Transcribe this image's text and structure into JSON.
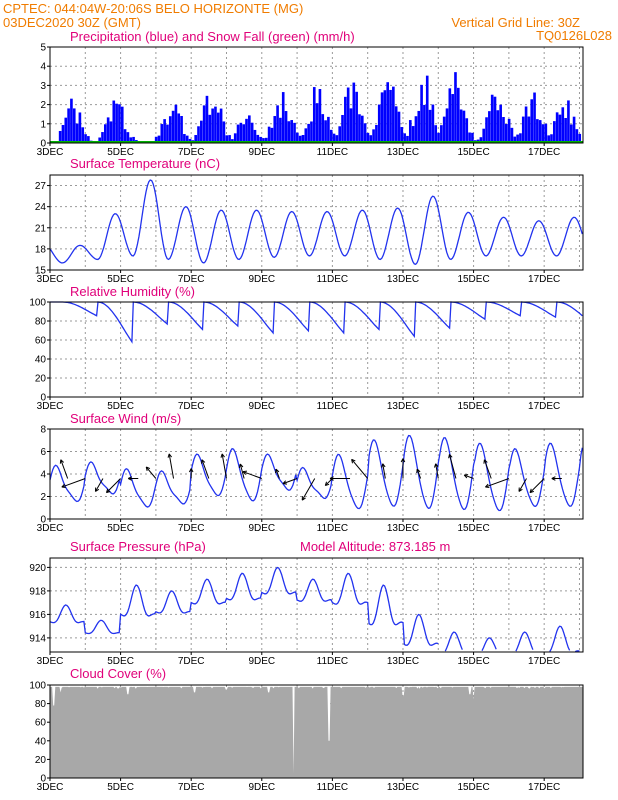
{
  "header": {
    "line1": "CPTEC:  044:04W-20:06S  BELO HORIZONTE (MG)",
    "line2": "03DEC2020 30Z (GMT)",
    "grid_note": "Vertical Grid Line: 30Z",
    "model_id": "TQ0126L028"
  },
  "colors": {
    "header": "#f07c00",
    "title": "#e0007a",
    "precip": "#0000ff",
    "snow": "#00b000",
    "line": "#2233ee",
    "cloud": "#a8a8a8"
  },
  "chart_data": [
    {
      "type": "bar",
      "title": "Precipitation (blue) and Snow Fall (green) (mm/h)",
      "x_tick_labels": [
        "3DEC",
        "5DEC",
        "7DEC",
        "9DEC",
        "11DEC",
        "13DEC",
        "15DEC",
        "17DEC"
      ],
      "ylim": [
        0,
        5
      ],
      "yticks": [
        0,
        1,
        2,
        3,
        4,
        5
      ],
      "grid": true,
      "series": [
        {
          "name": "Precipitation",
          "color": "blue",
          "peaks": [
            [
              0.8,
              2.9
            ],
            [
              2.1,
              2.4
            ],
            [
              3.7,
              2.3
            ],
            [
              4.8,
              3.2
            ],
            [
              5.8,
              1.8
            ],
            [
              6.8,
              3.0
            ],
            [
              7.8,
              3.2
            ],
            [
              8.8,
              3.6
            ],
            [
              9.8,
              3.7
            ],
            [
              10.8,
              3.9
            ],
            [
              11.7,
              4.0
            ],
            [
              12.9,
              3.2
            ],
            [
              13.9,
              3.0
            ],
            [
              14.8,
              2.6
            ],
            [
              15.8,
              3.0
            ],
            [
              16.8,
              3.2
            ],
            [
              17.8,
              2.8
            ]
          ]
        },
        {
          "name": "Snow Fall",
          "color": "green",
          "values": [
            0
          ]
        }
      ]
    },
    {
      "type": "line",
      "title": "Surface Temperature (nC)",
      "x_tick_labels": [
        "3DEC",
        "5DEC",
        "7DEC",
        "9DEC",
        "11DEC",
        "13DEC",
        "15DEC",
        "17DEC"
      ],
      "ylim": [
        15,
        28.5
      ],
      "yticks": [
        15,
        18,
        21,
        24,
        27
      ],
      "grid": true,
      "daily_max": [
        18.5,
        23.0,
        27.8,
        24.0,
        23.5,
        23.5,
        23.3,
        23.3,
        23.5,
        23.8,
        25.5,
        23.2,
        22.5,
        22.0,
        22.5,
        22.7,
        22.5,
        25.5
      ],
      "daily_min": [
        16.0,
        16.5,
        17.0,
        16.5,
        16.0,
        16.5,
        16.8,
        17.0,
        17.0,
        16.5,
        15.8,
        16.5,
        17.0,
        17.0,
        17.0,
        17.0,
        17.5,
        18.0
      ]
    },
    {
      "type": "line",
      "title": "Relative Humidity (%)",
      "x_tick_labels": [
        "3DEC",
        "5DEC",
        "7DEC",
        "9DEC",
        "11DEC",
        "13DEC",
        "15DEC",
        "17DEC"
      ],
      "ylim": [
        0,
        100
      ],
      "yticks": [
        0,
        20,
        40,
        60,
        80,
        100
      ],
      "grid": true,
      "daily_min": [
        100,
        80,
        42,
        68,
        60,
        65,
        55,
        58,
        55,
        60,
        50,
        62,
        75,
        80,
        78,
        70,
        72,
        65
      ]
    },
    {
      "type": "line",
      "title": "Surface Wind (m/s)",
      "x_tick_labels": [
        "3DEC",
        "5DEC",
        "7DEC",
        "9DEC",
        "11DEC",
        "13DEC",
        "15DEC",
        "17DEC"
      ],
      "ylim": [
        0,
        8
      ],
      "yticks": [
        0,
        2,
        4,
        6,
        8
      ],
      "grid": true,
      "daily_peak": [
        4.5,
        4.8,
        4.2,
        4.0,
        5.5,
        6.0,
        5.5,
        4.3,
        5.5,
        6.8,
        7.2,
        7.0,
        6.5,
        6.0,
        6.5,
        6.8,
        7.0,
        6.0
      ],
      "daily_low": [
        1.5,
        2.2,
        1.0,
        1.3,
        2.0,
        1.5,
        2.5,
        1.8,
        0.8,
        1.0,
        0.8,
        0.7,
        0.6,
        1.0,
        1.0,
        1.2,
        1.5,
        1.0
      ],
      "arrows": true
    },
    {
      "type": "line",
      "title": "Surface Pressure (hPa)",
      "annotation": "Model Altitude: 873.185 m",
      "x_tick_labels": [
        "3DEC",
        "5DEC",
        "7DEC",
        "9DEC",
        "11DEC",
        "13DEC",
        "15DEC",
        "17DEC"
      ],
      "ylim": [
        912.8,
        920.8
      ],
      "yticks": [
        914,
        916,
        918,
        920
      ],
      "grid": true,
      "daily_high": [
        916.8,
        915.5,
        918.5,
        918.0,
        919.0,
        919.5,
        920.0,
        919.0,
        919.5,
        918.5,
        916.0,
        914.5,
        914.0,
        914.5,
        915.0,
        914.8,
        914.5,
        914.0
      ],
      "daily_low": [
        914.8,
        914.0,
        915.0,
        915.5,
        916.2,
        916.5,
        917.0,
        916.5,
        916.0,
        914.0,
        912.5,
        912.0,
        912.0,
        912.0,
        912.0,
        912.0,
        912.0,
        912.0
      ]
    },
    {
      "type": "area",
      "title": "Cloud Cover (%)",
      "x_tick_labels": [
        "3DEC",
        "5DEC",
        "7DEC",
        "9DEC",
        "11DEC",
        "13DEC",
        "15DEC",
        "17DEC"
      ],
      "ylim": [
        0,
        100
      ],
      "yticks": [
        0,
        20,
        40,
        60,
        80,
        100
      ],
      "grid": true,
      "typical": 98,
      "dips": [
        [
          0.1,
          78
        ],
        [
          0.3,
          92
        ],
        [
          2.2,
          90
        ],
        [
          4.1,
          92
        ],
        [
          5.0,
          95
        ],
        [
          6.2,
          92
        ],
        [
          6.9,
          5
        ],
        [
          7.9,
          40
        ],
        [
          10.0,
          88
        ],
        [
          11.9,
          90
        ],
        [
          12.0,
          85
        ],
        [
          17.3,
          92
        ],
        [
          17.9,
          90
        ]
      ]
    }
  ]
}
